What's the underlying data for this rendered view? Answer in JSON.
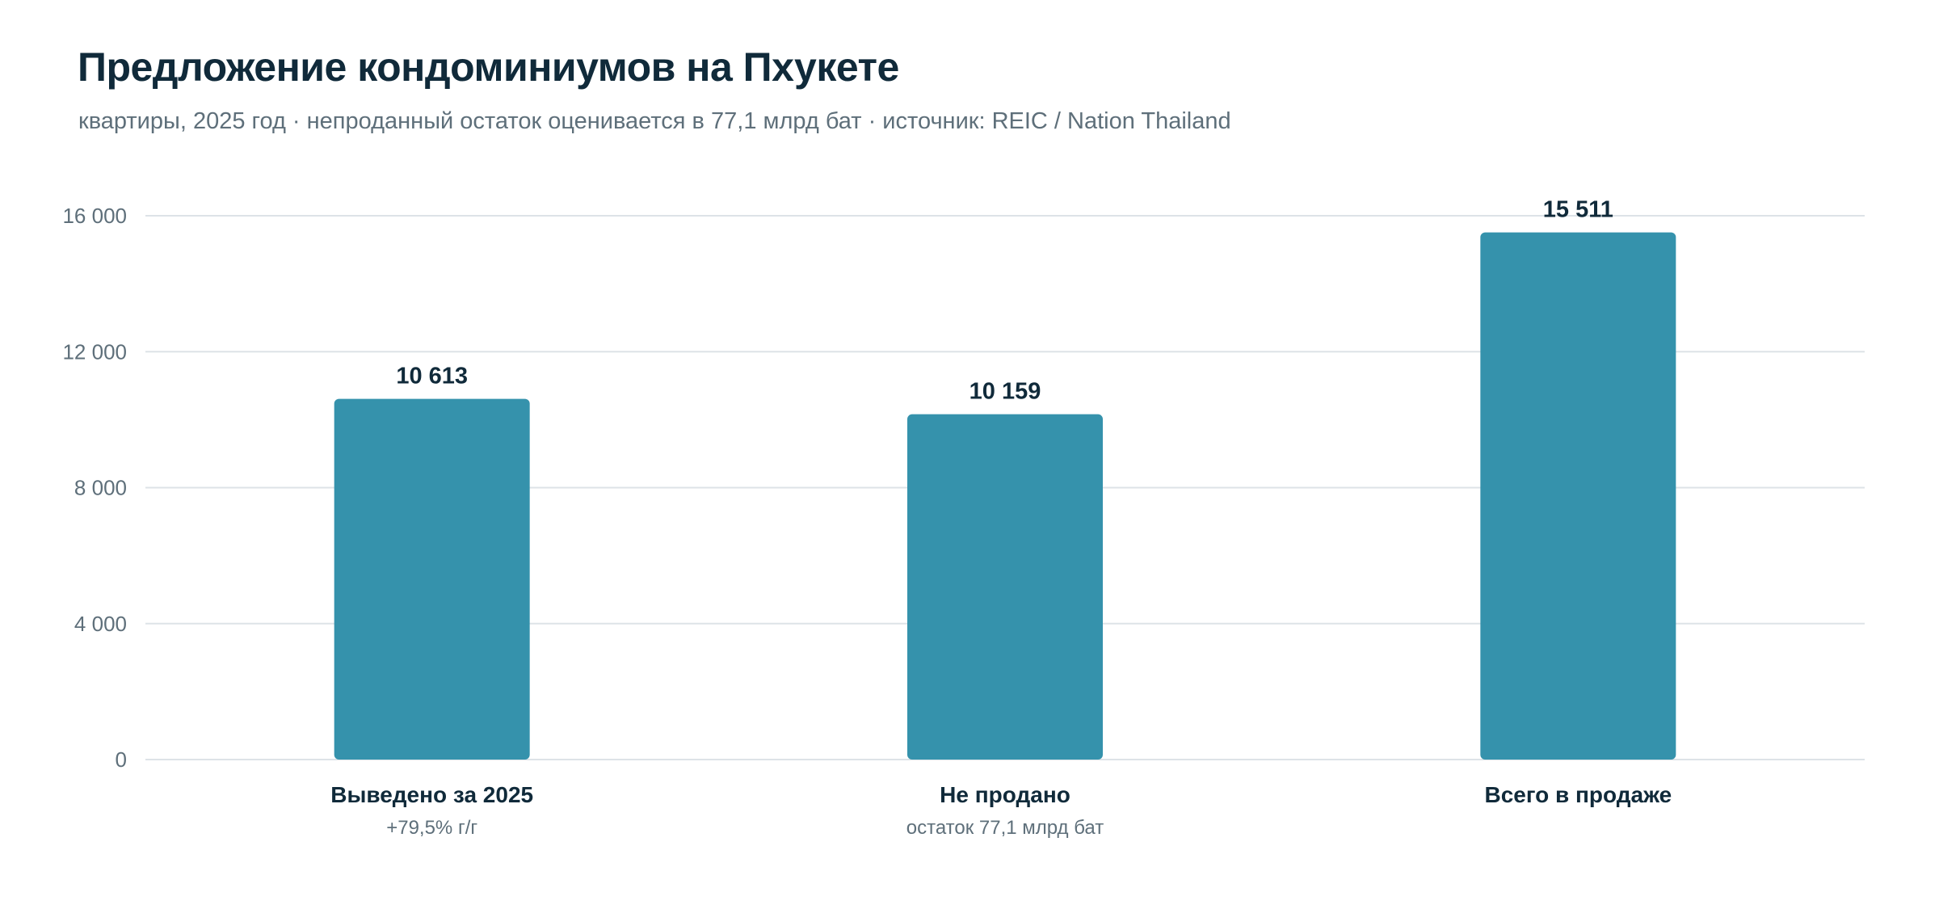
{
  "header": {
    "title": "Предложение кондоминиумов на Пхукете",
    "subtitle": "квартиры, 2025 год · непроданный остаток оценивается в 77,1 млрд бат · источник: REIC / Nation Thailand"
  },
  "colors": {
    "bar": "#3592ac",
    "grid": "#dde3e7",
    "title": "#102a3a",
    "muted": "#5e6f7a"
  },
  "chart_data": {
    "type": "bar",
    "categories": [
      "Выведено за 2025",
      "Не продано",
      "Всего в продаже"
    ],
    "category_notes": [
      "+79,5% г/г",
      "остаток 77,1 млрд бат",
      ""
    ],
    "values": [
      10613,
      10159,
      15511
    ],
    "value_labels": [
      "10 613",
      "10 159",
      "15 511"
    ],
    "yticks": [
      0,
      4000,
      8000,
      12000,
      16000
    ],
    "ytick_labels": [
      "0",
      "4 000",
      "8 000",
      "12 000",
      "16 000"
    ],
    "ylim": [
      0,
      16000
    ],
    "grid": true,
    "legend": "none"
  }
}
